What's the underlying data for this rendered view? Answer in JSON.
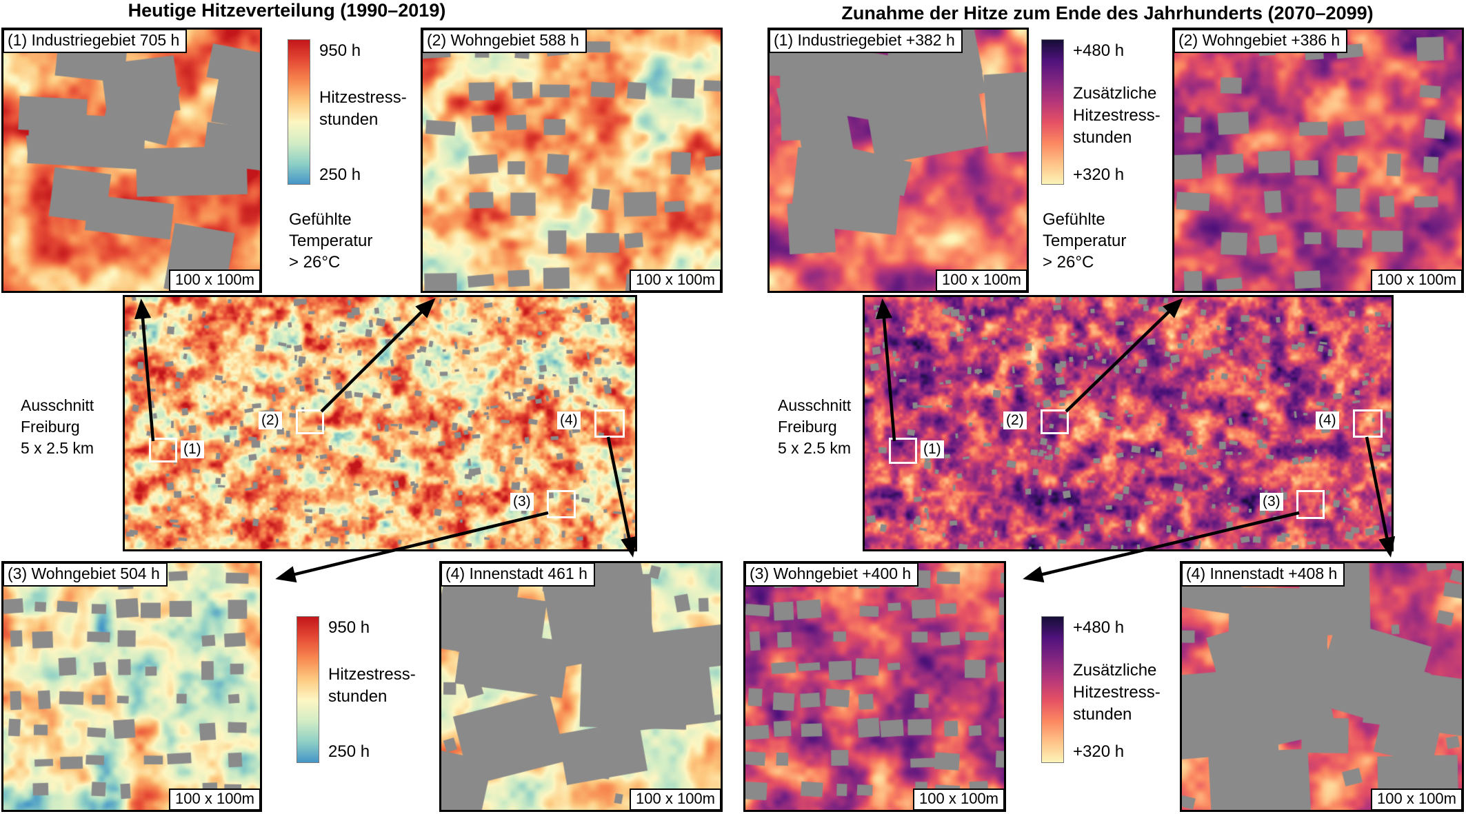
{
  "figure": {
    "building_color": "#8a8a8a",
    "panels": [
      {
        "title": "Heutige Hitzeverteilung (1990–2019)",
        "region_label_lines": [
          "Ausschnitt",
          "Freiburg",
          "5 x 2.5 km"
        ],
        "maps": [
          {
            "marker": "(1)",
            "label": "(1) Industriegebiet 705 h",
            "scale": "100 x 100m"
          },
          {
            "marker": "(2)",
            "label": "(2) Wohngebiet 588 h",
            "scale": "100 x 100m"
          },
          {
            "marker": "(3)",
            "label": "(3) Wohngebiet 504 h",
            "scale": "100 x 100m"
          },
          {
            "marker": "(4)",
            "label": "(4) Innenstadt 461 h",
            "scale": "100 x 100m"
          }
        ],
        "colorbar": {
          "max_label": "950 h",
          "title_lines": [
            "Hitzestress-",
            "stunden"
          ],
          "min_label": "250 h",
          "note_lines": [
            "Gefühlte",
            "Temperatur",
            "> 26°C"
          ],
          "gradient": [
            "#c3161b",
            "#e54a35",
            "#f78950",
            "#fdc980",
            "#fdf6c2",
            "#d3edc5",
            "#8fd0c5",
            "#4596c7"
          ]
        }
      },
      {
        "title": "Zunahme der Hitze zum Ende des Jahrhunderts (2070–2099)",
        "region_label_lines": [
          "Ausschnitt",
          "Freiburg",
          "5 x 2.5 km"
        ],
        "maps": [
          {
            "marker": "(1)",
            "label": "(1) Industriegebiet +382 h",
            "scale": "100 x 100m"
          },
          {
            "marker": "(2)",
            "label": "(2) Wohngebiet +386 h",
            "scale": "100 x 100m"
          },
          {
            "marker": "(3)",
            "label": "(3) Wohngebiet +400 h",
            "scale": "100 x 100m"
          },
          {
            "marker": "(4)",
            "label": "(4) Innenstadt +408 h",
            "scale": "100 x 100m"
          }
        ],
        "colorbar": {
          "max_label": "+480 h",
          "title_lines": [
            "Zusätzliche",
            "Hitzestress-",
            "stunden"
          ],
          "min_label": "+320 h",
          "note_lines": [
            "Gefühlte",
            "Temperatur",
            "> 26°C"
          ],
          "gradient": [
            "#150e37",
            "#4f127b",
            "#812581",
            "#b5367a",
            "#e55064",
            "#fb8761",
            "#fec287",
            "#fcf4b8"
          ]
        }
      }
    ]
  }
}
